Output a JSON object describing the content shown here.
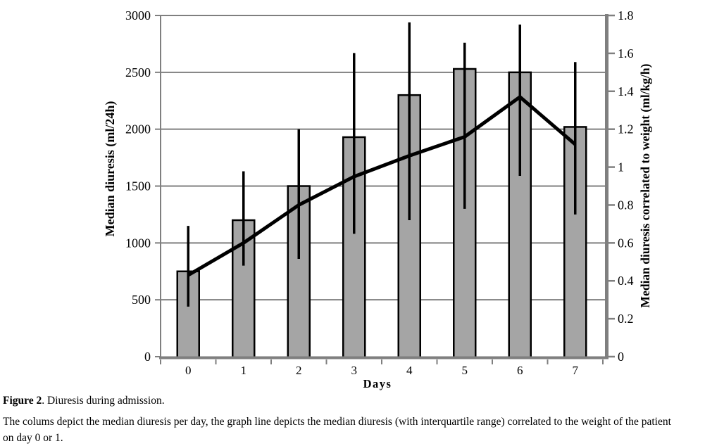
{
  "chart_data": {
    "type": "bar",
    "overlay": "line",
    "categories": [
      "0",
      "1",
      "2",
      "3",
      "4",
      "5",
      "6",
      "7"
    ],
    "title": "",
    "xlabel": "Days",
    "left_axis": {
      "label": "Median diuresis (ml/24h)",
      "min": 0,
      "max": 3000,
      "ticks": [
        0,
        500,
        1000,
        1500,
        2000,
        2500,
        3000
      ]
    },
    "right_axis": {
      "label": "Median diuresis correlated to weight (ml/kg/h)",
      "min": 0,
      "max": 1.8,
      "ticks": [
        0,
        0.2,
        0.4,
        0.6,
        0.8,
        1,
        1.2,
        1.4,
        1.6,
        1.8
      ]
    },
    "grid": true,
    "legend": false,
    "series": [
      {
        "name": "Median diuresis per day",
        "type": "bar",
        "axis": "left",
        "values": [
          750,
          1200,
          1500,
          1930,
          2300,
          2530,
          2500,
          2020
        ],
        "iqr_low": [
          440,
          800,
          860,
          1080,
          1200,
          1300,
          1590,
          1250
        ],
        "iqr_high": [
          1150,
          1630,
          2000,
          2670,
          2940,
          2760,
          2920,
          2590
        ]
      },
      {
        "name": "Median diuresis correlated to weight (with interquartile range)",
        "type": "line",
        "axis": "right",
        "values": [
          0.43,
          0.6,
          0.8,
          0.95,
          1.06,
          1.16,
          1.37,
          1.12
        ]
      }
    ],
    "colors": {
      "bar_fill": "#a5a5a5",
      "bar_border": "#000000",
      "error_bar": "#000000",
      "line": "#000000",
      "grid": "#7f7f7f",
      "axis": "#7f7f7f",
      "text": "#000000"
    }
  },
  "caption": {
    "figure_label": "Figure 2",
    "figure_text": ". Diuresis during admission.",
    "body_lines": [
      "The colums depict the median diuresis per day, the graph line depicts the median diuresis (with interquartile range) correlated to the weight of the patient",
      "on day 0 or 1."
    ]
  }
}
